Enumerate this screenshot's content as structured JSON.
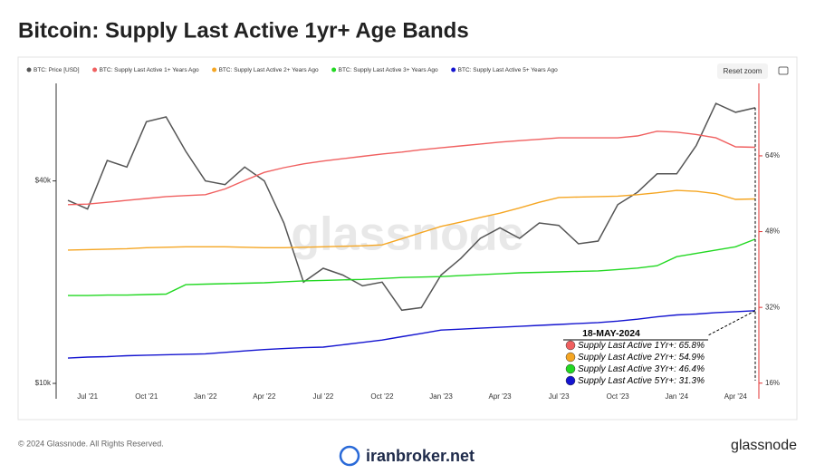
{
  "page": {
    "footer": "© 2024 Glassnode. All Rights Reserved.",
    "brand": "iranbroker.net",
    "logo": "glassnode",
    "watermark": "glassnode",
    "reset": "Reset zoom"
  },
  "chart_data": {
    "type": "line",
    "title": "Bitcoin: Supply Last Active 1yr+ Age Bands",
    "categories": [
      null,
      "Jul '21",
      null,
      null,
      "Oct '21",
      null,
      null,
      "Jan '22",
      null,
      null,
      "Apr '22",
      null,
      null,
      "Jul '22",
      null,
      null,
      "Oct '22",
      null,
      null,
      "Jan '23",
      null,
      null,
      "Apr '23",
      null,
      null,
      "Jul '23",
      null,
      null,
      "Oct '23",
      null,
      null,
      "Jan '24",
      null,
      null,
      "Apr '24",
      null
    ],
    "ylog": true,
    "ylim": [
      9000,
      78000
    ],
    "yticks": [
      {
        "value": 10000,
        "label": "$10k"
      },
      {
        "value": 40000,
        "label": "$40k"
      }
    ],
    "y2lim": [
      12.7,
      79.3
    ],
    "y2ticks": [
      {
        "value": 16,
        "label": "16%"
      },
      {
        "value": 32,
        "label": "32%"
      },
      {
        "value": 48,
        "label": "48%"
      },
      {
        "value": 64,
        "label": "64%"
      }
    ],
    "legend": "top",
    "series": [
      {
        "name": "BTC: Price [USD]",
        "color": "#555555",
        "values": [
          35000,
          33000,
          46000,
          44000,
          60000,
          62000,
          49000,
          40000,
          39000,
          44000,
          40000,
          30000,
          20000,
          22000,
          21000,
          19500,
          20000,
          16500,
          16800,
          21000,
          23500,
          27000,
          29000,
          27000,
          30000,
          29500,
          26000,
          26500,
          34000,
          37000,
          42000,
          42000,
          51000,
          68000,
          64000,
          66000
        ]
      },
      {
        "name": "BTC: Supply Last Active 1+ Years Ago",
        "color": "#f06060",
        "axis": "y2",
        "values": [
          53.7,
          53.8,
          54.2,
          54.6,
          55.0,
          55.4,
          55.6,
          55.8,
          57.0,
          58.8,
          60.5,
          61.5,
          62.3,
          62.9,
          63.4,
          63.9,
          64.4,
          64.8,
          65.3,
          65.7,
          66.1,
          66.5,
          66.9,
          67.2,
          67.5,
          67.8,
          67.8,
          67.8,
          67.8,
          68.2,
          69.2,
          69.0,
          68.5,
          67.8,
          65.9,
          65.8
        ]
      },
      {
        "name": "BTC: Supply Last Active 2+ Years Ago",
        "color": "#f5a623",
        "axis": "y2",
        "values": [
          44.1,
          44.2,
          44.3,
          44.4,
          44.6,
          44.7,
          44.8,
          44.8,
          44.8,
          44.7,
          44.6,
          44.6,
          44.7,
          44.8,
          44.9,
          45.0,
          45.2,
          46.5,
          47.8,
          49.1,
          50.0,
          51.0,
          51.9,
          53.0,
          54.2,
          55.2,
          55.3,
          55.4,
          55.5,
          55.8,
          56.2,
          56.7,
          56.5,
          56.0,
          54.8,
          54.9
        ]
      },
      {
        "name": "BTC: Supply Last Active 3+ Years Ago",
        "color": "#22d822",
        "axis": "y2",
        "values": [
          34.5,
          34.5,
          34.6,
          34.6,
          34.7,
          34.8,
          36.8,
          36.9,
          37.0,
          37.1,
          37.2,
          37.4,
          37.6,
          37.7,
          37.8,
          37.9,
          38.1,
          38.3,
          38.4,
          38.5,
          38.7,
          38.9,
          39.1,
          39.3,
          39.4,
          39.5,
          39.6,
          39.7,
          40.0,
          40.3,
          40.8,
          42.7,
          43.4,
          44.1,
          44.8,
          46.4
        ]
      },
      {
        "name": "BTC: Supply Last Active 5+ Years Ago",
        "color": "#1414d0",
        "axis": "y2",
        "values": [
          21.3,
          21.5,
          21.6,
          21.8,
          21.9,
          22.0,
          22.1,
          22.2,
          22.5,
          22.8,
          23.1,
          23.3,
          23.5,
          23.6,
          24.1,
          24.6,
          25.1,
          25.8,
          26.5,
          27.2,
          27.4,
          27.6,
          27.8,
          28.0,
          28.2,
          28.4,
          28.6,
          28.8,
          29.1,
          29.5,
          30.0,
          30.4,
          30.6,
          30.9,
          31.1,
          31.3
        ]
      }
    ],
    "annotation": {
      "date": "18-MAY-2024",
      "lines": [
        "Supply Last Active 1Yr+: 65.8%",
        "Supply Last Active 2Yr+: 54.9%",
        "Supply Last Active 3Yr+: 46.4%",
        "Supply Last Active 5Yr+: 31.3%"
      ]
    }
  }
}
